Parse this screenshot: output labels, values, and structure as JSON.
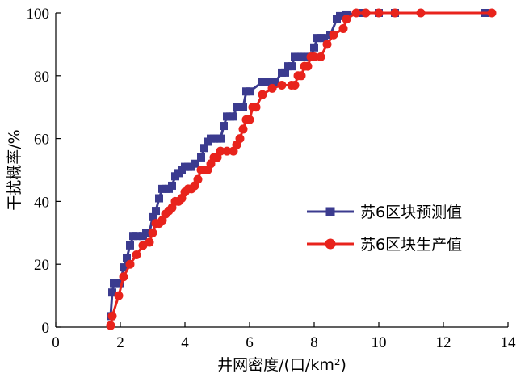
{
  "chart_data": {
    "type": "line",
    "xlabel": "井网密度/(口/km²)",
    "ylabel": "干扰概率/%",
    "xlim": [
      0,
      14
    ],
    "ylim": [
      0,
      100
    ],
    "xticks": [
      "0",
      "2",
      "4",
      "6",
      "8",
      "10",
      "12",
      "14"
    ],
    "yticks": [
      "0",
      "20",
      "40",
      "60",
      "80",
      "100"
    ],
    "grid": false,
    "legend_position": "center-right",
    "series": [
      {
        "name": "苏6区块预测值",
        "color": "#3b3b8f",
        "marker": "square",
        "x": [
          1.7,
          1.75,
          1.8,
          1.85,
          1.9,
          2.0,
          2.1,
          2.2,
          2.3,
          2.4,
          2.5,
          2.7,
          2.8,
          2.9,
          3.0,
          3.1,
          3.2,
          3.3,
          3.4,
          3.5,
          3.6,
          3.7,
          3.8,
          3.9,
          4.0,
          4.1,
          4.2,
          4.3,
          4.5,
          4.6,
          4.7,
          4.8,
          4.9,
          5.0,
          5.1,
          5.2,
          5.3,
          5.4,
          5.5,
          5.6,
          5.7,
          5.8,
          5.9,
          6.0,
          6.4,
          6.6,
          6.8,
          7.0,
          7.1,
          7.2,
          7.3,
          7.4,
          7.5,
          7.6,
          7.7,
          7.8,
          7.9,
          8.0,
          8.1,
          8.2,
          8.3,
          8.5,
          8.7,
          8.8,
          9.0,
          9.5,
          10.0,
          10.5,
          13.3
        ],
        "y": [
          3.5,
          11,
          14,
          14,
          14,
          14,
          19,
          22,
          26,
          29,
          29,
          29,
          30,
          30,
          35,
          37,
          41,
          44,
          44,
          44,
          45,
          48,
          49,
          50,
          51,
          51,
          51,
          52,
          54,
          57,
          59,
          60,
          60,
          60,
          60,
          64,
          67,
          67,
          67,
          70,
          70,
          70,
          75,
          75,
          78,
          78,
          78,
          81,
          81,
          83,
          83,
          86,
          86,
          86,
          86,
          86,
          86,
          89,
          92,
          92,
          92,
          93,
          98,
          99,
          99.5,
          100,
          100,
          100,
          100
        ]
      },
      {
        "name": "苏6区块生产值",
        "color": "#e8231c",
        "marker": "circle",
        "x": [
          1.7,
          1.75,
          1.95,
          2.1,
          2.3,
          2.5,
          2.7,
          2.9,
          3.0,
          3.1,
          3.2,
          3.3,
          3.4,
          3.5,
          3.6,
          3.7,
          3.8,
          3.9,
          4.0,
          4.1,
          4.2,
          4.3,
          4.4,
          4.5,
          4.6,
          4.7,
          4.8,
          4.9,
          5.0,
          5.1,
          5.3,
          5.5,
          5.6,
          5.7,
          5.8,
          5.9,
          6.0,
          6.1,
          6.2,
          6.4,
          6.7,
          7.0,
          7.3,
          7.4,
          7.5,
          7.6,
          7.7,
          7.8,
          7.9,
          8.0,
          8.2,
          8.4,
          8.6,
          8.9,
          9.0,
          9.3,
          9.6,
          10.0,
          10.5,
          11.3,
          13.5
        ],
        "y": [
          0.5,
          3.5,
          10,
          16,
          20,
          23,
          26,
          27,
          30,
          33,
          33,
          34,
          36,
          37,
          38,
          40,
          40,
          41,
          43,
          44,
          44,
          45,
          47,
          50,
          50,
          50,
          52,
          54,
          54,
          56,
          56,
          56,
          58,
          60,
          63,
          66,
          66,
          70,
          70,
          74,
          76,
          77,
          77,
          77,
          80,
          80,
          83,
          83,
          86,
          86,
          86,
          90,
          93,
          95,
          98,
          100,
          100,
          100,
          100,
          100,
          100
        ]
      }
    ]
  }
}
